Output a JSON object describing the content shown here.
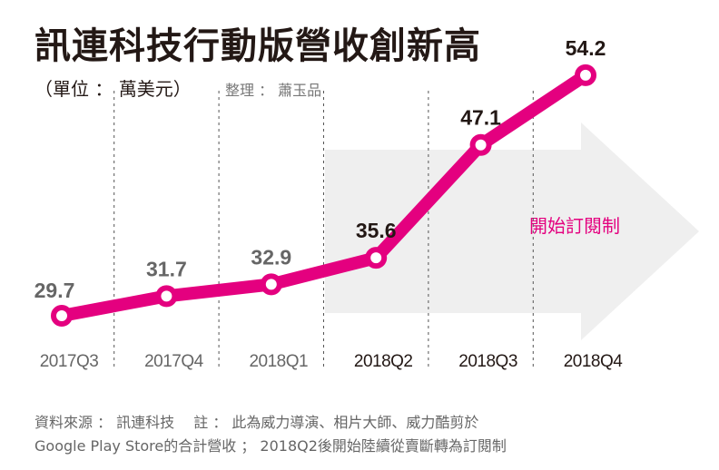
{
  "title": "訊連科技行動版營收創新高",
  "unit": "（單位 ： 萬美元）",
  "editor": "整理 ： 蕭玉品",
  "annotation": "開始訂閱制",
  "footnote": [
    "資料來源 ： 訊連科技　 註 ： 此為威力導演、相片大師、威力酷剪於",
    "Google Play Store的合計營收 ； 2018Q2後開始陸續從賣斷轉為訂閱制"
  ],
  "colors": {
    "line": "#e4007f",
    "arrow": "#efefef",
    "label_early": "#666666",
    "label_late": "#231815"
  },
  "chart_data": {
    "type": "line",
    "categories": [
      "2017Q3",
      "2017Q4",
      "2018Q1",
      "2018Q2",
      "2018Q3",
      "2018Q4"
    ],
    "values": [
      29.7,
      31.7,
      32.9,
      35.6,
      47.1,
      54.2
    ],
    "value_labels": [
      "29.7",
      "31.7",
      "32.9",
      "35.6",
      "47.1",
      "54.2"
    ],
    "title": "訊連科技行動版營收創新高",
    "ylabel": "",
    "xlabel": "",
    "grid": "vertical dashed separators"
  }
}
